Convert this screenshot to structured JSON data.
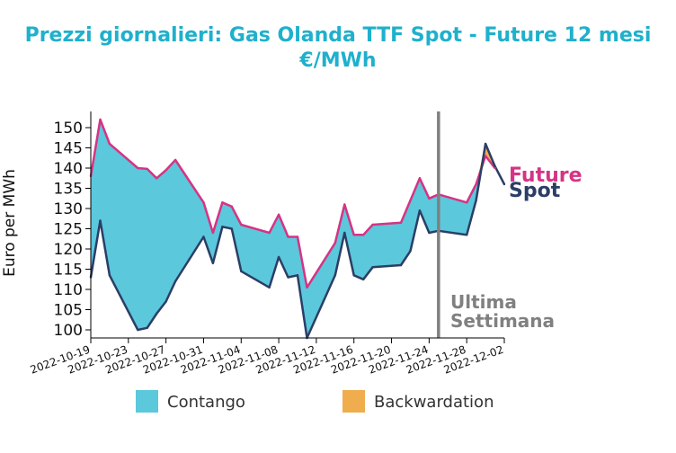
{
  "chart_data": {
    "type": "area",
    "title": "Prezzi giornalieri: Gas Olanda TTF Spot - Future 12 mesi",
    "subtitle": "€/MWh",
    "xlabel": "",
    "ylabel": "Euro per MWh",
    "ylim": [
      98,
      154
    ],
    "yticks": [
      100,
      105,
      110,
      115,
      120,
      125,
      130,
      135,
      140,
      145,
      150
    ],
    "xlim": [
      "2022-10-19",
      "2022-12-02"
    ],
    "xticks": [
      "2022-10-19",
      "2022-10-23",
      "2022-10-27",
      "2022-10-31",
      "2022-11-04",
      "2022-11-08",
      "2022-11-12",
      "2022-11-16",
      "2022-11-20",
      "2022-11-24",
      "2022-11-28",
      "2022-12-02"
    ],
    "grid": false,
    "series": [
      {
        "name": "Future",
        "color": "#d63384",
        "points": [
          [
            "2022-10-19",
            138
          ],
          [
            "2022-10-20",
            152
          ],
          [
            "2022-10-21",
            146
          ],
          [
            "2022-10-24",
            140
          ],
          [
            "2022-10-25",
            139.8
          ],
          [
            "2022-10-26",
            137.5
          ],
          [
            "2022-10-27",
            139.5
          ],
          [
            "2022-10-28",
            142
          ],
          [
            "2022-10-31",
            131.5
          ],
          [
            "2022-11-01",
            124
          ],
          [
            "2022-11-02",
            131.5
          ],
          [
            "2022-11-03",
            130.5
          ],
          [
            "2022-11-04",
            126
          ],
          [
            "2022-11-07",
            124
          ],
          [
            "2022-11-08",
            128.5
          ],
          [
            "2022-11-09",
            123
          ],
          [
            "2022-11-10",
            123
          ],
          [
            "2022-11-11",
            110.5
          ],
          [
            "2022-11-14",
            121.5
          ],
          [
            "2022-11-15",
            131
          ],
          [
            "2022-11-16",
            123.5
          ],
          [
            "2022-11-17",
            123.5
          ],
          [
            "2022-11-18",
            126
          ],
          [
            "2022-11-21",
            126.5
          ],
          [
            "2022-11-22",
            132
          ],
          [
            "2022-11-23",
            137.5
          ],
          [
            "2022-11-24",
            132.5
          ],
          [
            "2022-11-25",
            133.5
          ],
          [
            "2022-11-28",
            131.5
          ],
          [
            "2022-11-29",
            136
          ],
          [
            "2022-11-30",
            143
          ],
          [
            "2022-12-01",
            140
          ]
        ]
      },
      {
        "name": "Spot",
        "color": "#2c3e66",
        "points": [
          [
            "2022-10-19",
            113
          ],
          [
            "2022-10-20",
            127
          ],
          [
            "2022-10-21",
            113.5
          ],
          [
            "2022-10-24",
            100
          ],
          [
            "2022-10-25",
            100.5
          ],
          [
            "2022-10-26",
            104
          ],
          [
            "2022-10-27",
            107
          ],
          [
            "2022-10-28",
            112
          ],
          [
            "2022-10-31",
            123
          ],
          [
            "2022-11-01",
            116.5
          ],
          [
            "2022-11-02",
            125.5
          ],
          [
            "2022-11-03",
            125
          ],
          [
            "2022-11-04",
            114.5
          ],
          [
            "2022-11-07",
            110.5
          ],
          [
            "2022-11-08",
            118
          ],
          [
            "2022-11-09",
            113
          ],
          [
            "2022-11-10",
            113.5
          ],
          [
            "2022-11-11",
            98
          ],
          [
            "2022-11-14",
            113.5
          ],
          [
            "2022-11-15",
            124
          ],
          [
            "2022-11-16",
            113.5
          ],
          [
            "2022-11-17",
            112.5
          ],
          [
            "2022-11-18",
            115.5
          ],
          [
            "2022-11-21",
            116
          ],
          [
            "2022-11-22",
            119.5
          ],
          [
            "2022-11-23",
            129.5
          ],
          [
            "2022-11-24",
            124
          ],
          [
            "2022-11-25",
            124.5
          ],
          [
            "2022-11-28",
            123.5
          ],
          [
            "2022-11-29",
            132
          ],
          [
            "2022-11-30",
            146
          ],
          [
            "2022-12-01",
            140.5
          ],
          [
            "2022-12-02",
            136
          ]
        ]
      }
    ],
    "fill_legend": [
      {
        "label": "Contango",
        "color": "#5bc8dc"
      },
      {
        "label": "Backwardation",
        "color": "#f0ad4e"
      }
    ],
    "marker": {
      "date": "2022-11-25",
      "label_line1": "Ultima",
      "label_line2": "Settimana",
      "color": "#808080"
    },
    "series_labels": {
      "future": "Future",
      "spot": "Spot"
    }
  }
}
